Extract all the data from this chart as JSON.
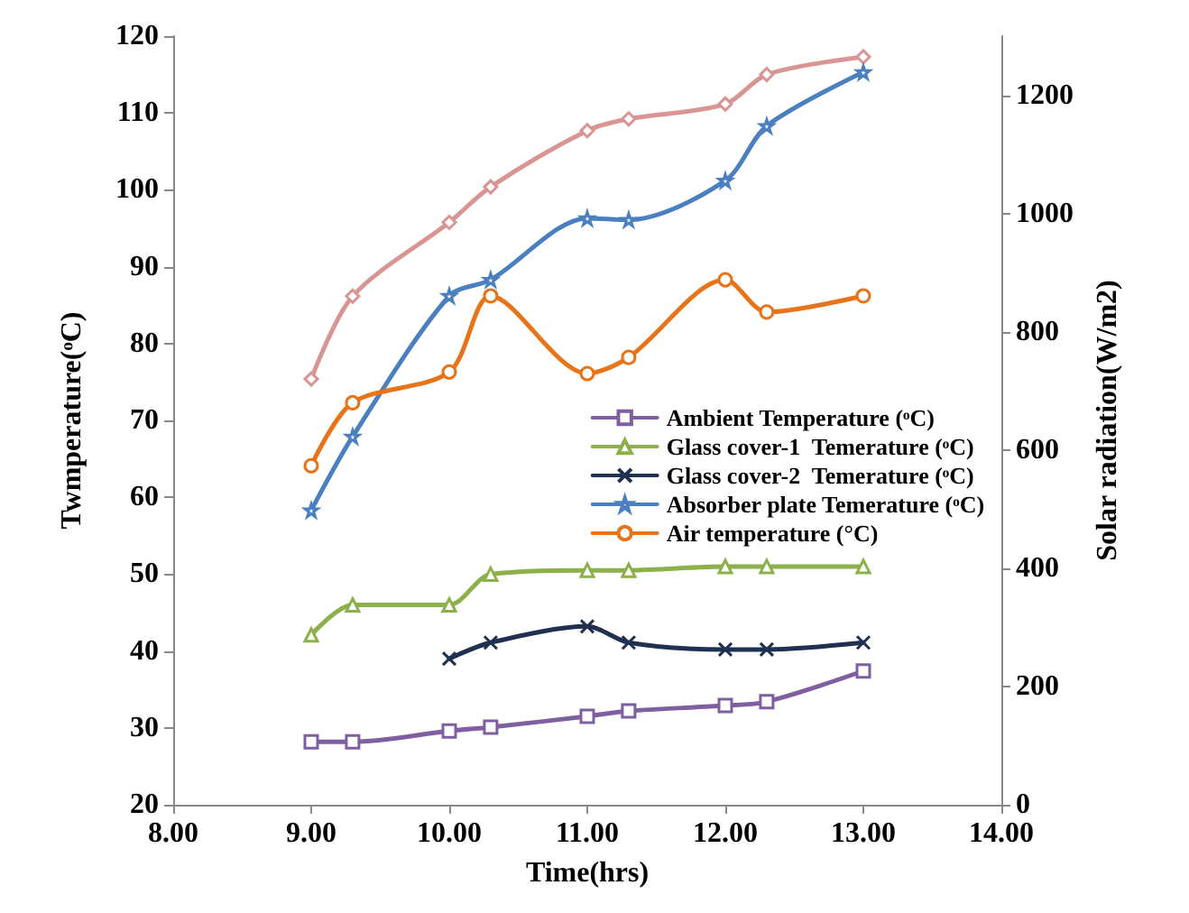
{
  "chart_data": {
    "type": "line",
    "xlabel": "Time(hrs)",
    "ylabel": "Twmperature(ᵒC)",
    "y2label": "Solar radiation(W/m2)",
    "x": [
      9.0,
      9.3,
      10.0,
      10.3,
      11.0,
      11.3,
      12.0,
      12.3,
      13.0
    ],
    "xlim": [
      8,
      14
    ],
    "xticks": [
      {
        "value": 8,
        "label": "8.00"
      },
      {
        "value": 9,
        "label": "9.00"
      },
      {
        "value": 10,
        "label": "10.00"
      },
      {
        "value": 11,
        "label": "11.00"
      },
      {
        "value": 12,
        "label": "12.00"
      },
      {
        "value": 13,
        "label": "13.00"
      },
      {
        "value": 14,
        "label": "14.00"
      }
    ],
    "ylim": [
      20,
      120
    ],
    "yticks": [
      20,
      30,
      40,
      50,
      60,
      70,
      80,
      90,
      100,
      110,
      120
    ],
    "y2lim": [
      0,
      1300
    ],
    "y2ticks": [
      0,
      200,
      400,
      600,
      800,
      1000,
      1200
    ],
    "legend": "right",
    "series": [
      {
        "name": "Ambient Temperature (ᵒC)",
        "color": "#7f5f9f",
        "marker": "square",
        "values": [
          28.2,
          28.2,
          29.6,
          30.1,
          31.5,
          32.2,
          32.9,
          33.4,
          37.4
        ]
      },
      {
        "name": "Glass cover-1  Temerature (ᵒC)",
        "color": "#8cb04a",
        "marker": "triangle",
        "values": [
          42.1,
          46,
          46,
          50,
          50.5,
          50.5,
          51,
          51,
          51
        ]
      },
      {
        "name": "Glass cover-2  Temerature (ᵒC)",
        "color": "#1f3050",
        "marker": "cross",
        "values": [
          null,
          null,
          39,
          41.1,
          43.2,
          41.1,
          40.2,
          40.2,
          41.1
        ]
      },
      {
        "name": "Absorber plate Temerature (ᵒC)",
        "color": "#4a7fc0",
        "marker": "star",
        "values": [
          58.3,
          67.9,
          86.2,
          88.3,
          96.3,
          96.1,
          101.2,
          108.3,
          115.3
        ]
      },
      {
        "name": "Air temperature (°C)",
        "color": "#e8741a",
        "marker": "circle",
        "values": [
          64.1,
          72.3,
          76.3,
          86.2,
          76.1,
          78.2,
          88.3,
          84.1,
          86.2
        ]
      },
      {
        "color": "#d99594",
        "marker": "diamond",
        "axis": "y2",
        "values": [
          720,
          860,
          985,
          1045,
          1140,
          1160,
          1185,
          1235,
          1265
        ]
      }
    ]
  }
}
